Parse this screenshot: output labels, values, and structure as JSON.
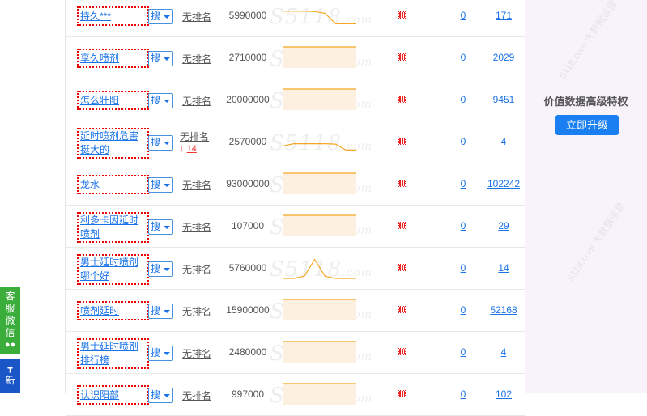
{
  "rows": [
    {
      "keyword": "持久***",
      "sou": "搜",
      "rank": "无排名",
      "volume": "5990000",
      "count0": "0",
      "count": "171",
      "trend": [
        0.7,
        0.7,
        0.7,
        0.68,
        0.6,
        0.1,
        0.1,
        0.1
      ]
    },
    {
      "keyword": "享久喷剂",
      "sou": "搜",
      "rank": "无排名",
      "volume": "2710000",
      "count0": "0",
      "count": "2029",
      "trend": [
        1,
        1,
        1,
        1,
        1,
        1,
        1,
        1
      ]
    },
    {
      "keyword": "怎么壮阳",
      "sou": "搜",
      "rank": "无排名",
      "volume": "20000000",
      "count0": "0",
      "count": "9451",
      "trend": [
        1,
        1,
        1,
        1,
        1,
        1,
        1,
        1
      ]
    },
    {
      "keyword": "延时喷剂危害挺大的",
      "sou": "搜",
      "rank": "无排名",
      "rank_change": "14",
      "volume": "2570000",
      "count0": "0",
      "count": "4",
      "trend": [
        0.3,
        0.4,
        0.4,
        0.4,
        0.4,
        0.38,
        0.1,
        0.1
      ]
    },
    {
      "keyword": "龙水",
      "sou": "搜",
      "rank": "无排名",
      "volume": "93000000",
      "count0": "0",
      "count": "102242",
      "trend": [
        1,
        1,
        1,
        1,
        1,
        1,
        1,
        1
      ]
    },
    {
      "keyword": "利多卡因延时喷剂",
      "sou": "搜",
      "rank": "无排名",
      "volume": "107000",
      "count0": "0",
      "count": "29",
      "trend": [
        1,
        1,
        1,
        1,
        1,
        1,
        1,
        1
      ]
    },
    {
      "keyword": "男士延时喷剂哪个好",
      "sou": "搜",
      "rank": "无排名",
      "volume": "5760000",
      "count0": "0",
      "count": "14",
      "trend": [
        0,
        0,
        0.1,
        0.9,
        0.1,
        0,
        0,
        0
      ]
    },
    {
      "keyword": "喷剂延时",
      "sou": "搜",
      "rank": "无排名",
      "volume": "15900000",
      "count0": "0",
      "count": "52168",
      "trend": [
        1,
        1,
        1,
        1,
        1,
        1,
        1,
        1
      ]
    },
    {
      "keyword": "男士延时喷剂排行榜",
      "sou": "搜",
      "rank": "无排名",
      "volume": "2480000",
      "count0": "0",
      "count": "4",
      "trend": [
        1,
        1,
        1,
        1,
        1,
        1,
        1,
        1
      ]
    },
    {
      "keyword": "认识阳部",
      "sou": "搜",
      "rank": "无排名",
      "volume": "997000",
      "count0": "0",
      "count": "102",
      "trend": [
        1,
        1,
        1,
        1,
        1,
        1,
        1,
        1
      ]
    }
  ],
  "watermark": "5118.com",
  "right_panel": {
    "title": "价值数据高级特权",
    "upgrade_button": "立即升级",
    "watermark": "5118.com 大数据运营"
  },
  "side_tabs": {
    "wechat": "客服微信",
    "new": "新"
  },
  "colors": {
    "link": "#1a73e8",
    "trend": "#f5a623",
    "highlight": "#e00000",
    "upgrade": "#1a7ff0",
    "wechat_tab": "#3aad3a"
  }
}
